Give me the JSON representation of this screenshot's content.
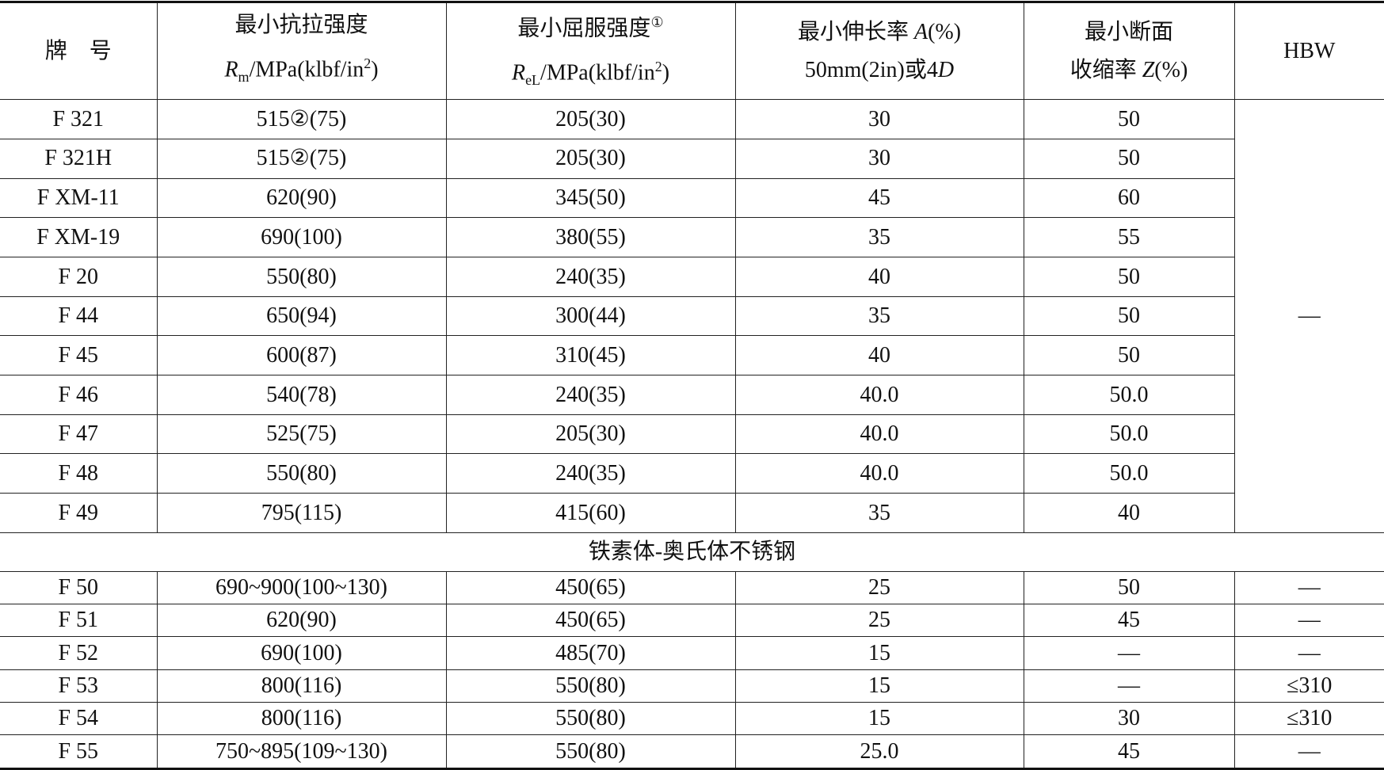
{
  "table": {
    "header": [
      [
        [
          {
            "text": "牌　号"
          }
        ]
      ],
      [
        [
          {
            "text": "最小抗拉强度"
          }
        ],
        [
          {
            "text": "R",
            "style": "i"
          },
          {
            "text": "m",
            "style": "sub"
          },
          {
            "text": "/MPa(klbf/in"
          },
          {
            "text": "2",
            "style": "sup"
          },
          {
            "text": ")"
          }
        ]
      ],
      [
        [
          {
            "text": "最小屈服强度"
          },
          {
            "text": "①",
            "style": "sup"
          }
        ],
        [
          {
            "text": "R",
            "style": "i"
          },
          {
            "text": "eL",
            "style": "sub"
          },
          {
            "text": "/MPa(klbf/in"
          },
          {
            "text": "2",
            "style": "sup"
          },
          {
            "text": ")"
          }
        ]
      ],
      [
        [
          {
            "text": "最小伸长率 "
          },
          {
            "text": "A",
            "style": "i"
          },
          {
            "text": "(%)"
          }
        ],
        [
          {
            "text": "50mm(2in)或4"
          },
          {
            "text": "D",
            "style": "i"
          }
        ]
      ],
      [
        [
          {
            "text": "最小断面"
          }
        ],
        [
          {
            "text": "收缩率 "
          },
          {
            "text": "Z",
            "style": "i"
          },
          {
            "text": "(%)"
          }
        ]
      ],
      [
        [
          {
            "text": "HBW"
          }
        ]
      ]
    ],
    "rows": [
      [
        "F 321",
        "515②(75)",
        "205(30)",
        "30",
        "50"
      ],
      [
        "F 321H",
        "515②(75)",
        "205(30)",
        "30",
        "50"
      ],
      [
        "F XM-11",
        "620(90)",
        "345(50)",
        "45",
        "60"
      ],
      [
        "F XM-19",
        "690(100)",
        "380(55)",
        "35",
        "55"
      ],
      [
        "F 20",
        "550(80)",
        "240(35)",
        "40",
        "50"
      ],
      [
        "F 44",
        "650(94)",
        "300(44)",
        "35",
        "50"
      ],
      [
        "F 45",
        "600(87)",
        "310(45)",
        "40",
        "50"
      ],
      [
        "F 46",
        "540(78)",
        "240(35)",
        "40.0",
        "50.0"
      ],
      [
        "F 47",
        "525(75)",
        "205(30)",
        "40.0",
        "50.0"
      ],
      [
        "F 48",
        "550(80)",
        "240(35)",
        "40.0",
        "50.0"
      ],
      [
        "F 49",
        "795(115)",
        "415(60)",
        "35",
        "40"
      ]
    ],
    "hbw_merged": "—",
    "section": "铁素体-奥氏体不锈钢",
    "rows2": [
      [
        "F 50",
        "690~900(100~130)",
        "450(65)",
        "25",
        "50",
        "—"
      ],
      [
        "F 51",
        "620(90)",
        "450(65)",
        "25",
        "45",
        "—"
      ],
      [
        "F 52",
        "690(100)",
        "485(70)",
        "15",
        "—",
        "—"
      ],
      [
        "F 53",
        "800(116)",
        "550(80)",
        "15",
        "—",
        "≤310"
      ],
      [
        "F 54",
        "800(116)",
        "550(80)",
        "15",
        "30",
        "≤310"
      ],
      [
        "F 55",
        "750~895(109~130)",
        "550(80)",
        "25.0",
        "45",
        "—"
      ]
    ]
  }
}
